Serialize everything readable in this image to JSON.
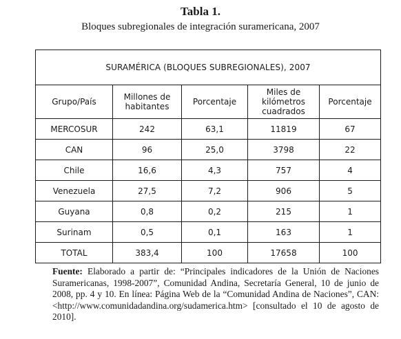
{
  "title": "Tabla 1.",
  "subtitle": "Bloques subregionales de integración suramericana, 2007",
  "table": {
    "banner": "SURAMÉRICA (BLOQUES SUBREGIONALES), 2007",
    "headers": [
      "Grupo/País",
      "Millones de habitantes",
      "Porcentaje",
      "Miles de kilómetros cuadrados",
      "Porcentaje"
    ],
    "rows": [
      [
        "MERCOSUR",
        "242",
        "63,1",
        "11819",
        "67"
      ],
      [
        "CAN",
        "96",
        "25,0",
        "3798",
        "22"
      ],
      [
        "Chile",
        "16,6",
        "4,3",
        "757",
        "4"
      ],
      [
        "Venezuela",
        "27,5",
        "7,2",
        "906",
        "5"
      ],
      [
        "Guyana",
        "0,8",
        "0,2",
        "215",
        "1"
      ],
      [
        "Surinam",
        "0,5",
        "0,1",
        "163",
        "1"
      ],
      [
        "TOTAL",
        "383,4",
        "100",
        "17658",
        "100"
      ]
    ]
  },
  "note": {
    "label": "Fuente:",
    "text": " Elaborado a partir de: “Principales indicadores de la Unión de Naciones Suramericanas, 1998-2007”, Comunidad Andina, Secretaría General, 10 de junio de 2008, pp. 4 y 10. En línea: Página Web de la “Comunidad Andina de Naciones”, CAN: <http://www.comunidadandina.org/sudamerica.htm> [consultado el 10 de agosto de 2010]."
  }
}
